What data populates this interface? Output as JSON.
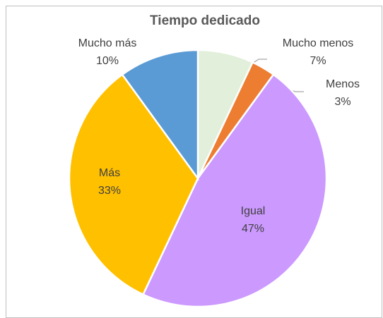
{
  "chart_data": {
    "type": "pie",
    "title": "Tiempo dedicado",
    "categories": [
      "Mucho menos",
      "Menos",
      "Igual",
      "Más",
      "Mucho más"
    ],
    "values": [
      7,
      3,
      47,
      33,
      10
    ],
    "value_labels": [
      "7%",
      "3%",
      "47%",
      "33%",
      "10%"
    ],
    "colors": [
      "#e2efda",
      "#ed7d31",
      "#cc99ff",
      "#ffc000",
      "#5b9bd5"
    ]
  }
}
